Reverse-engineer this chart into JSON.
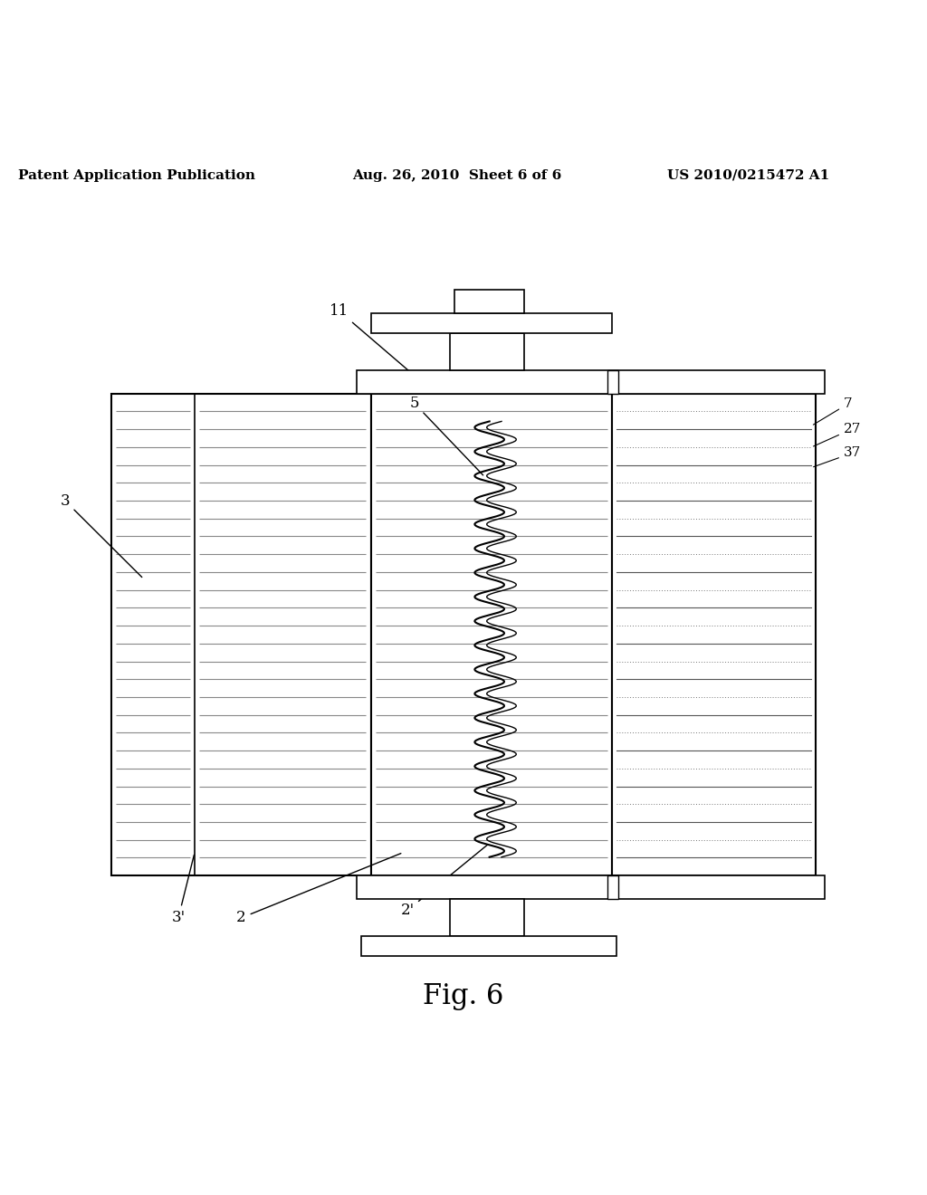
{
  "bg_color": "#ffffff",
  "header_left": "Patent Application Publication",
  "header_mid": "Aug. 26, 2010  Sheet 6 of 6",
  "header_right": "US 2010/0215472 A1",
  "fig_label": "Fig. 6",
  "header_fontsize": 11,
  "fig_label_fontsize": 22
}
